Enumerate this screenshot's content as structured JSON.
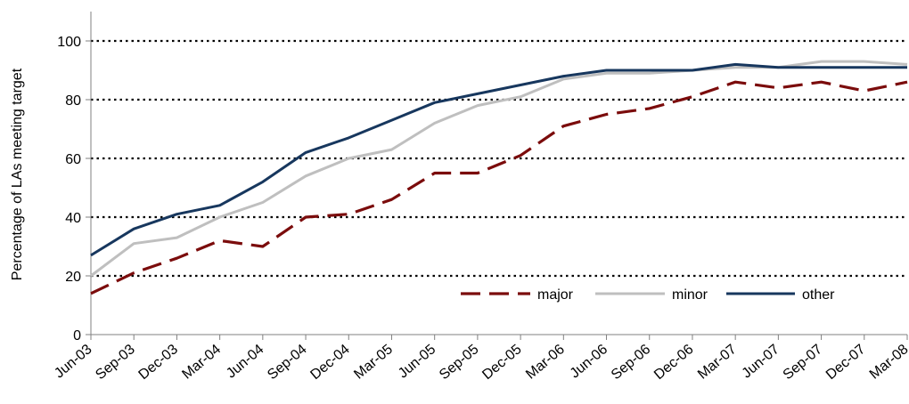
{
  "chart_data": {
    "type": "line",
    "title": "",
    "xlabel": "",
    "ylabel": "Percentage of LAs meeting target",
    "ylim": [
      0,
      110
    ],
    "yticks": [
      0,
      20,
      40,
      60,
      80,
      100
    ],
    "grid": "horizontal dotted",
    "legend_position": "bottom-right",
    "categories": [
      "Jun-03",
      "Sep-03",
      "Dec-03",
      "Mar-04",
      "Jun-04",
      "Sep-04",
      "Dec-04",
      "Mar-05",
      "Jun-05",
      "Sep-05",
      "Dec-05",
      "Mar-06",
      "Jun-06",
      "Sep-06",
      "Dec-06",
      "Mar-07",
      "Jun-07",
      "Sep-07",
      "Dec-07",
      "Mar-08"
    ],
    "series": [
      {
        "name": "major",
        "color": "#7b0c0c",
        "style": "dashed",
        "values": [
          14,
          21,
          26,
          32,
          30,
          40,
          41,
          46,
          55,
          55,
          61,
          71,
          75,
          77,
          81,
          86,
          84,
          86,
          83,
          86
        ]
      },
      {
        "name": "minor",
        "color": "#bfbfbf",
        "style": "solid",
        "values": [
          20,
          31,
          33,
          40,
          45,
          54,
          60,
          63,
          72,
          78,
          81,
          87,
          89,
          89,
          90,
          91,
          91,
          93,
          93,
          92
        ]
      },
      {
        "name": "other",
        "color": "#17375e",
        "style": "solid",
        "values": [
          27,
          36,
          41,
          44,
          52,
          62,
          67,
          73,
          79,
          82,
          85,
          88,
          90,
          90,
          90,
          92,
          91,
          91,
          91,
          91
        ]
      }
    ]
  }
}
